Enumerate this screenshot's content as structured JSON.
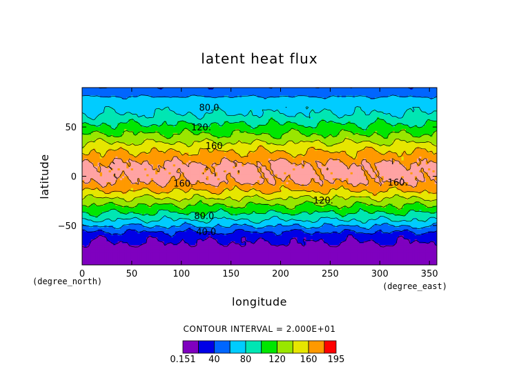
{
  "chart_data": {
    "type": "heatmap",
    "title": "latent heat flux",
    "xlabel": "longitude",
    "ylabel": "latitude",
    "x_unit": "(degree_east)",
    "y_unit": "(degree_north)",
    "xlim": [
      0,
      357.5
    ],
    "ylim": [
      -90,
      90
    ],
    "x_ticks": [
      0,
      50,
      100,
      150,
      200,
      250,
      300,
      350
    ],
    "y_ticks": [
      -50,
      0,
      50
    ],
    "contour_interval_label": "CONTOUR INTERVAL = 2.000E+01",
    "levels": [
      0.151,
      20,
      40,
      60,
      80,
      100,
      120,
      140,
      160,
      180,
      195
    ],
    "colorbar_labels": [
      {
        "value": 0.151,
        "text": "0.151"
      },
      {
        "value": 40,
        "text": "40"
      },
      {
        "value": 80,
        "text": "80"
      },
      {
        "value": 120,
        "text": "120"
      },
      {
        "value": 160,
        "text": "160"
      },
      {
        "value": 195,
        "text": "195"
      }
    ],
    "colors": [
      "#7f00bf",
      "#0000e6",
      "#0066ff",
      "#00ccff",
      "#00e6b3",
      "#00e600",
      "#99e600",
      "#e6e600",
      "#ff9900",
      "#ff0000",
      "#ffa3a3"
    ],
    "contour_labels": [
      {
        "text": "80.0",
        "lon": 128,
        "lat": 70
      },
      {
        "text": "120.",
        "lon": 120,
        "lat": 50
      },
      {
        "text": "160",
        "lon": 133,
        "lat": 31
      },
      {
        "text": "160.",
        "lon": 102,
        "lat": -7
      },
      {
        "text": "160.",
        "lon": 318,
        "lat": -6
      },
      {
        "text": "120.",
        "lon": 243,
        "lat": -24
      },
      {
        "text": "80.0",
        "lon": 123,
        "lat": -40
      },
      {
        "text": "40.0",
        "lon": 125,
        "lat": -56
      }
    ],
    "latitudinal_profile": {
      "lat": [
        -90,
        -80,
        -70,
        -60,
        -55,
        -50,
        -45,
        -40,
        -35,
        -30,
        -25,
        -20,
        -15,
        -10,
        -5,
        0,
        5,
        10,
        15,
        20,
        25,
        30,
        35,
        40,
        45,
        50,
        55,
        60,
        65,
        70,
        75,
        80,
        85,
        90
      ],
      "value": [
        8,
        12,
        16,
        30,
        45,
        62,
        78,
        92,
        106,
        118,
        132,
        146,
        160,
        172,
        183,
        188,
        188,
        186,
        178,
        168,
        160,
        150,
        138,
        126,
        116,
        106,
        96,
        86,
        78,
        72,
        68,
        62,
        50,
        42
      ]
    }
  }
}
